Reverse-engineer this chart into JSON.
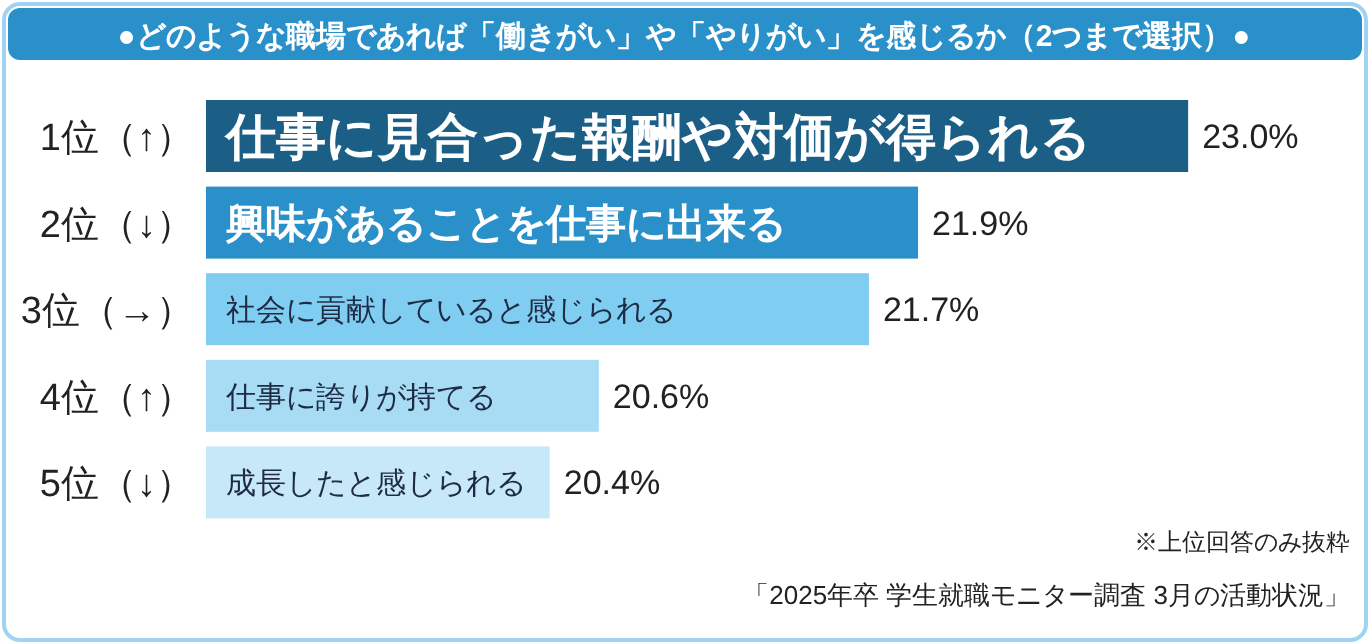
{
  "chart_data": {
    "type": "bar",
    "orientation": "horizontal",
    "title": "●どのような職場であれば「働きがい」や「やりがい」を感じるか（2つまで選択）●",
    "categories": [
      "1位（↑）",
      "2位（↓）",
      "3位（→）",
      "4位（↑）",
      "5位（↓）"
    ],
    "values": [
      23.0,
      21.9,
      21.7,
      20.6,
      20.4
    ],
    "colors": [
      "#1b5f86",
      "#2a90c9",
      "#7fcdf0",
      "#a8dcf4",
      "#c6e8f8"
    ],
    "value_labels": [
      "23.0%",
      "21.9%",
      "21.7%",
      "20.6%",
      "20.4%"
    ],
    "xlim": [
      19,
      23.7
    ],
    "annotations": [
      {
        "text": "仕事に見合った報酬や対価が得られる",
        "y": "1位（↑）"
      },
      {
        "text": "興味があることを仕事に出来る",
        "y": "2位（↓）"
      },
      {
        "text": "社会に貢献していると感じられる",
        "y": "3位（→）"
      },
      {
        "text": "仕事に誇りが持てる",
        "y": "4位（↑）"
      },
      {
        "text": "成長したと感じられる",
        "y": "5位（↓）"
      },
      "※上位回答のみ抜粋",
      "「2025年卒 学生就職モニター調査 3月の活動状況」"
    ]
  }
}
